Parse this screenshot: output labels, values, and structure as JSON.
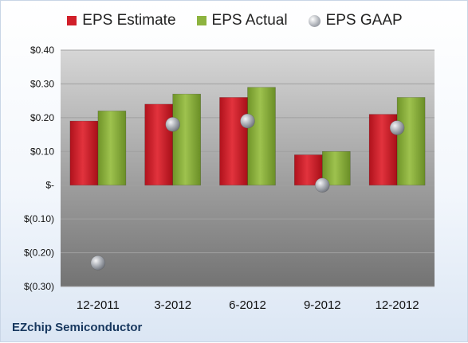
{
  "company": "EZchip Semiconductor",
  "legend": {
    "estimate": "EPS Estimate",
    "actual": "EPS Actual",
    "gaap": "EPS GAAP"
  },
  "colors": {
    "estimate": "#d11f2a",
    "actual": "#8db33f",
    "gaap": "#a8acb3",
    "plot_bg_top": "#d6d6d6",
    "plot_bg_bottom": "#737373"
  },
  "chart_data": {
    "type": "bar",
    "categories": [
      "12-2011",
      "3-2012",
      "6-2012",
      "9-2012",
      "12-2012"
    ],
    "series": [
      {
        "name": "EPS Estimate",
        "kind": "bar",
        "values": [
          0.19,
          0.24,
          0.26,
          0.09,
          0.21
        ]
      },
      {
        "name": "EPS Actual",
        "kind": "bar",
        "values": [
          0.22,
          0.27,
          0.29,
          0.1,
          0.26
        ]
      },
      {
        "name": "EPS GAAP",
        "kind": "marker",
        "values": [
          -0.23,
          0.18,
          0.19,
          0.0,
          0.17
        ]
      }
    ],
    "y_ticks": [
      "$(0.30)",
      "$(0.20)",
      "$(0.10)",
      "$-",
      "$0.10",
      "$0.20",
      "$0.30",
      "$0.40"
    ],
    "ylim": [
      -0.3,
      0.4
    ],
    "grid": true,
    "legend_position": "top"
  }
}
